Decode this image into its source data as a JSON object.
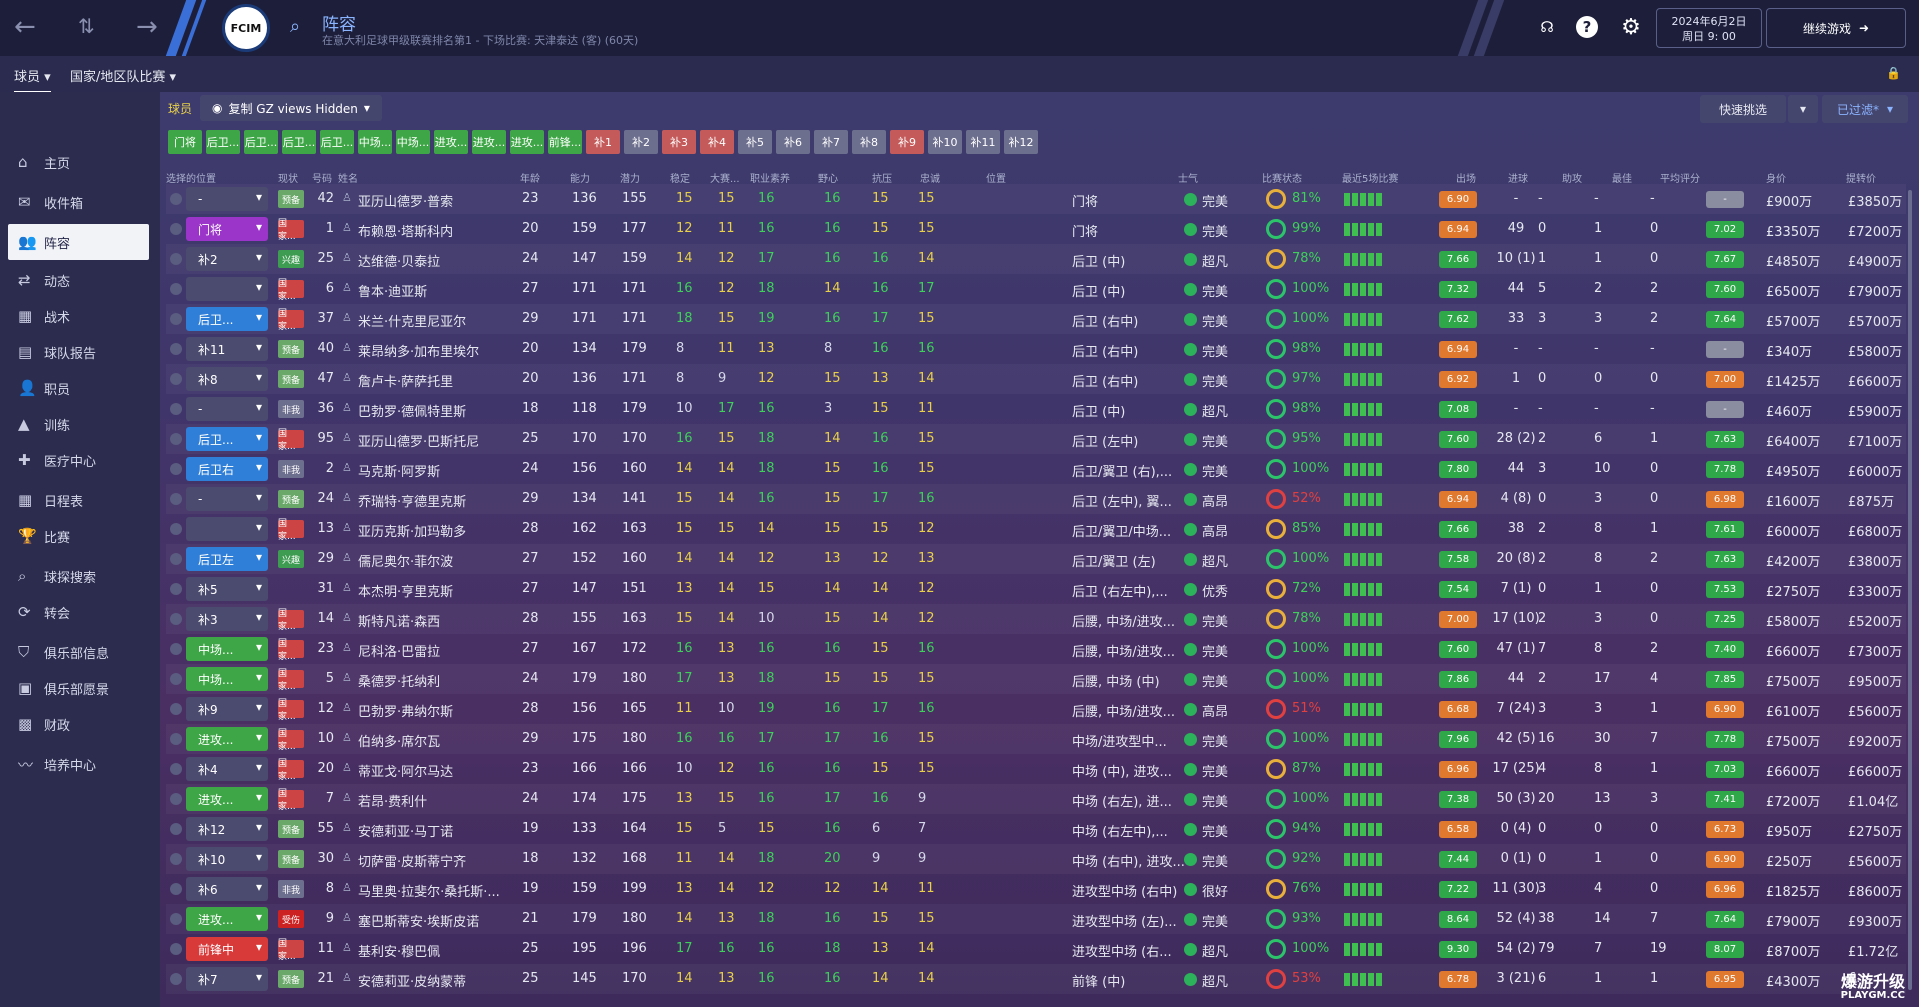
{
  "topbar": {
    "title": "阵容",
    "subtitle": "在意大利足球甲级联赛排名第1 - 下场比赛: 天津泰达 (客) (60天)",
    "crest_text": "FCIM",
    "date": "2024年6月2日",
    "time": "周日 9: 00",
    "continue": "继续游戏"
  },
  "subtabs": [
    "球员",
    "国家/地区队比赛"
  ],
  "sidebar": [
    "主页",
    "收件箱",
    "阵容",
    "动态",
    "战术",
    "球队报告",
    "职员",
    "训练",
    "医疗中心",
    "日程表",
    "比赛",
    "球探搜索",
    "转会",
    "俱乐部信息",
    "俱乐部愿景",
    "财政",
    "培养中心"
  ],
  "toolbar": {
    "label": "球员",
    "view": "复制 GZ views Hidden",
    "quick": "快速挑选",
    "filter": "已过滤*"
  },
  "pills": [
    {
      "t": "门将",
      "c": "#3ea646"
    },
    {
      "t": "后卫...",
      "c": "#3ea646"
    },
    {
      "t": "后卫...",
      "c": "#3ea646"
    },
    {
      "t": "后卫...",
      "c": "#3ea646"
    },
    {
      "t": "后卫...",
      "c": "#3ea646"
    },
    {
      "t": "中场...",
      "c": "#3ea646"
    },
    {
      "t": "中场...",
      "c": "#3ea646"
    },
    {
      "t": "进攻...",
      "c": "#3ea646"
    },
    {
      "t": "进攻...",
      "c": "#3ea646"
    },
    {
      "t": "进攻...",
      "c": "#3ea646"
    },
    {
      "t": "前锋...",
      "c": "#3ea646"
    },
    {
      "t": "补1",
      "c": "#c45a5a"
    },
    {
      "t": "补2",
      "c": "#6d6f8e"
    },
    {
      "t": "补3",
      "c": "#c45a5a"
    },
    {
      "t": "补4",
      "c": "#c45a5a"
    },
    {
      "t": "补5",
      "c": "#6d6f8e"
    },
    {
      "t": "补6",
      "c": "#6d6f8e"
    },
    {
      "t": "补7",
      "c": "#6d6f8e"
    },
    {
      "t": "补8",
      "c": "#6d6f8e"
    },
    {
      "t": "补9",
      "c": "#c45a5a"
    },
    {
      "t": "补10",
      "c": "#6d6f8e"
    },
    {
      "t": "补11",
      "c": "#6d6f8e"
    },
    {
      "t": "补12",
      "c": "#6d6f8e"
    }
  ],
  "headers": [
    "选择的位置",
    "现状",
    "号码",
    "姓名",
    "年龄",
    "能力",
    "潜力",
    "稳定",
    "大赛...",
    "职业素养",
    "野心",
    "抗压",
    "忠诚",
    "位置",
    "士气",
    "比赛状态",
    "最近5场比赛",
    "出场",
    "进球",
    "助攻",
    "最佳",
    "平均评分",
    "身价",
    "提转价"
  ],
  "rows": [
    {
      "sel": "-",
      "sc": "#4a4b6e",
      "st": "预备",
      "bc": "#6aa86a",
      "no": "42",
      "name": "亚历山德罗·普索",
      "age": "23",
      "ca": "136",
      "pa": "155",
      "c1": "15",
      "c2": "15",
      "c3": "16",
      "c4": "16",
      "c5": "15",
      "c6": "15",
      "pos": "门将",
      "mor": "完美",
      "cond": "81%",
      "r5": "6.90",
      "r5c": "#e0782e",
      "apps": "-",
      "gl": "-",
      "as": "-",
      "pom": "-",
      "avg": "-",
      "avc": "#8a8ca0",
      "val": "£900万",
      "ask": "£3850万"
    },
    {
      "sel": "门将",
      "sc": "#9b35c9",
      "st": "国家...",
      "bc": "#cc4444",
      "no": "1",
      "name": "布赖恩·塔斯科内",
      "age": "20",
      "ca": "159",
      "pa": "177",
      "c1": "12",
      "c2": "11",
      "c3": "16",
      "c4": "16",
      "c5": "15",
      "c6": "15",
      "pos": "门将",
      "mor": "完美",
      "cond": "99%",
      "r5": "6.94",
      "r5c": "#e0782e",
      "apps": "49",
      "gl": "0",
      "as": "1",
      "pom": "0",
      "avg": "7.02",
      "avc": "#2fa84a",
      "val": "£3350万",
      "ask": "£7200万"
    },
    {
      "sel": "补2",
      "sc": "#4a4b6e",
      "st": "兴趣",
      "bc": "#3e9b52",
      "no": "25",
      "name": "达维德·贝泰拉",
      "age": "24",
      "ca": "147",
      "pa": "159",
      "c1": "14",
      "c2": "12",
      "c3": "17",
      "c4": "16",
      "c5": "16",
      "c6": "14",
      "pos": "后卫 (中)",
      "mor": "超凡",
      "cond": "78%",
      "r5": "7.66",
      "r5c": "#2fa84a",
      "apps": "10 (1)",
      "gl": "1",
      "as": "1",
      "pom": "0",
      "avg": "7.67",
      "avc": "#2fa84a",
      "val": "£4850万",
      "ask": "£4900万"
    },
    {
      "sel": "",
      "sc": "#4a4b6e",
      "st": "国家...",
      "bc": "#cc4444",
      "no": "6",
      "name": "鲁本·迪亚斯",
      "age": "27",
      "ca": "171",
      "pa": "171",
      "c1": "16",
      "c2": "12",
      "c3": "18",
      "c4": "14",
      "c5": "16",
      "c6": "17",
      "pos": "后卫 (中)",
      "mor": "完美",
      "cond": "100%",
      "r5": "7.32",
      "r5c": "#2fa84a",
      "apps": "44",
      "gl": "5",
      "as": "2",
      "pom": "2",
      "avg": "7.60",
      "avc": "#2fa84a",
      "val": "£6500万",
      "ask": "£7900万"
    },
    {
      "sel": "后卫...",
      "sc": "#2f7fd8",
      "st": "国家...",
      "bc": "#cc4444",
      "no": "37",
      "name": "米兰·什克里尼亚尔",
      "age": "29",
      "ca": "171",
      "pa": "171",
      "c1": "18",
      "c2": "15",
      "c3": "19",
      "c4": "16",
      "c5": "17",
      "c6": "15",
      "pos": "后卫 (右中)",
      "mor": "完美",
      "cond": "100%",
      "r5": "7.62",
      "r5c": "#2fa84a",
      "apps": "33",
      "gl": "3",
      "as": "3",
      "pom": "2",
      "avg": "7.64",
      "avc": "#2fa84a",
      "val": "£5700万",
      "ask": "£5700万"
    },
    {
      "sel": "补11",
      "sc": "#4a4b6e",
      "st": "预备",
      "bc": "#6aa86a",
      "no": "40",
      "name": "莱昂纳多·加布里埃尔",
      "age": "20",
      "ca": "134",
      "pa": "179",
      "c1": "8",
      "c2": "11",
      "c3": "13",
      "c4": "8",
      "c5": "16",
      "c6": "16",
      "pos": "后卫 (右中)",
      "mor": "完美",
      "cond": "98%",
      "r5": "6.94",
      "r5c": "#e0782e",
      "apps": "-",
      "gl": "-",
      "as": "-",
      "pom": "-",
      "avg": "-",
      "avc": "#8a8ca0",
      "val": "£340万",
      "ask": "£5800万"
    },
    {
      "sel": "补8",
      "sc": "#4a4b6e",
      "st": "预备",
      "bc": "#6aa86a",
      "no": "47",
      "name": "詹卢卡·萨萨托里",
      "age": "20",
      "ca": "136",
      "pa": "171",
      "c1": "8",
      "c2": "9",
      "c3": "12",
      "c4": "15",
      "c5": "13",
      "c6": "14",
      "pos": "后卫 (右中)",
      "mor": "完美",
      "cond": "97%",
      "r5": "6.92",
      "r5c": "#e0782e",
      "apps": "1",
      "gl": "0",
      "as": "0",
      "pom": "0",
      "avg": "7.00",
      "avc": "#e0782e",
      "val": "£1425万",
      "ask": "£6600万"
    },
    {
      "sel": "-",
      "sc": "#4a4b6e",
      "st": "非我",
      "bc": "#6d6f8e",
      "no": "36",
      "name": "巴勃罗·德佩特里斯",
      "age": "18",
      "ca": "118",
      "pa": "179",
      "c1": "10",
      "c2": "17",
      "c3": "16",
      "c4": "3",
      "c5": "15",
      "c6": "11",
      "pos": "后卫 (中)",
      "mor": "超凡",
      "cond": "98%",
      "r5": "7.08",
      "r5c": "#2fa84a",
      "apps": "-",
      "gl": "-",
      "as": "-",
      "pom": "-",
      "avg": "-",
      "avc": "#8a8ca0",
      "val": "£460万",
      "ask": "£5900万"
    },
    {
      "sel": "后卫...",
      "sc": "#2f7fd8",
      "st": "国家...",
      "bc": "#cc4444",
      "no": "95",
      "name": "亚历山德罗·巴斯托尼",
      "age": "25",
      "ca": "170",
      "pa": "170",
      "c1": "16",
      "c2": "15",
      "c3": "18",
      "c4": "14",
      "c5": "16",
      "c6": "15",
      "pos": "后卫 (左中)",
      "mor": "完美",
      "cond": "95%",
      "r5": "7.60",
      "r5c": "#2fa84a",
      "apps": "28 (2)",
      "gl": "2",
      "as": "6",
      "pom": "1",
      "avg": "7.63",
      "avc": "#2fa84a",
      "val": "£6400万",
      "ask": "£7100万"
    },
    {
      "sel": "后卫右",
      "sc": "#2f7fd8",
      "st": "非我",
      "bc": "#6d6f8e",
      "no": "2",
      "name": "马克斯·阿罗斯",
      "age": "24",
      "ca": "156",
      "pa": "160",
      "c1": "14",
      "c2": "14",
      "c3": "18",
      "c4": "15",
      "c5": "16",
      "c6": "15",
      "pos": "后卫/翼卫 (右),...",
      "mor": "完美",
      "cond": "100%",
      "r5": "7.80",
      "r5c": "#2fa84a",
      "apps": "44",
      "gl": "3",
      "as": "10",
      "pom": "0",
      "avg": "7.78",
      "avc": "#2fa84a",
      "val": "£4950万",
      "ask": "£6000万"
    },
    {
      "sel": "-",
      "sc": "#4a4b6e",
      "st": "预备",
      "bc": "#6aa86a",
      "no": "24",
      "name": "乔瑞特·亨德里克斯",
      "age": "29",
      "ca": "134",
      "pa": "141",
      "c1": "15",
      "c2": "14",
      "c3": "16",
      "c4": "15",
      "c5": "17",
      "c6": "16",
      "pos": "后卫 (左中), 翼...",
      "mor": "高昂",
      "cond": "52%",
      "r5": "6.94",
      "r5c": "#e0782e",
      "apps": "4 (8)",
      "gl": "0",
      "as": "3",
      "pom": "0",
      "avg": "6.98",
      "avc": "#e0782e",
      "val": "£1600万",
      "ask": "£875万"
    },
    {
      "sel": "",
      "sc": "#4a4b6e",
      "st": "国家...",
      "bc": "#cc4444",
      "no": "13",
      "name": "亚历克斯·加玛勒多",
      "age": "28",
      "ca": "162",
      "pa": "163",
      "c1": "15",
      "c2": "15",
      "c3": "14",
      "c4": "15",
      "c5": "15",
      "c6": "12",
      "pos": "后卫/翼卫/中场...",
      "mor": "高昂",
      "cond": "85%",
      "r5": "7.66",
      "r5c": "#2fa84a",
      "apps": "38",
      "gl": "2",
      "as": "8",
      "pom": "1",
      "avg": "7.61",
      "avc": "#2fa84a",
      "val": "£6000万",
      "ask": "£6800万"
    },
    {
      "sel": "后卫左",
      "sc": "#2f7fd8",
      "st": "兴趣",
      "bc": "#3e9b52",
      "no": "29",
      "name": "儒尼奥尔·菲尔波",
      "age": "27",
      "ca": "152",
      "pa": "160",
      "c1": "14",
      "c2": "14",
      "c3": "12",
      "c4": "13",
      "c5": "12",
      "c6": "13",
      "pos": "后卫/翼卫 (左)",
      "mor": "超凡",
      "cond": "100%",
      "r5": "7.58",
      "r5c": "#2fa84a",
      "apps": "20 (8)",
      "gl": "2",
      "as": "8",
      "pom": "2",
      "avg": "7.63",
      "avc": "#2fa84a",
      "val": "£4200万",
      "ask": "£3800万"
    },
    {
      "sel": "补5",
      "sc": "#4a4b6e",
      "st": "",
      "bc": "transparent",
      "no": "31",
      "name": "本杰明·亨里克斯",
      "age": "27",
      "ca": "147",
      "pa": "151",
      "c1": "13",
      "c2": "14",
      "c3": "15",
      "c4": "14",
      "c5": "14",
      "c6": "12",
      "pos": "后卫 (右左中),...",
      "mor": "优秀",
      "cond": "72%",
      "r5": "7.54",
      "r5c": "#2fa84a",
      "apps": "7 (1)",
      "gl": "0",
      "as": "1",
      "pom": "0",
      "avg": "7.53",
      "avc": "#2fa84a",
      "val": "£2750万",
      "ask": "£3300万"
    },
    {
      "sel": "补3",
      "sc": "#4a4b6e",
      "st": "国家...",
      "bc": "#cc4444",
      "no": "14",
      "name": "斯特凡诺·森西",
      "age": "28",
      "ca": "155",
      "pa": "163",
      "c1": "15",
      "c2": "14",
      "c3": "10",
      "c4": "15",
      "c5": "14",
      "c6": "12",
      "pos": "后腰, 中场/进攻...",
      "mor": "完美",
      "cond": "78%",
      "r5": "7.00",
      "r5c": "#e0782e",
      "apps": "17 (10)",
      "gl": "2",
      "as": "3",
      "pom": "0",
      "avg": "7.25",
      "avc": "#2fa84a",
      "val": "£5800万",
      "ask": "£5200万"
    },
    {
      "sel": "中场...",
      "sc": "#3ea646",
      "st": "国家...",
      "bc": "#cc4444",
      "no": "23",
      "name": "尼科洛·巴雷拉",
      "age": "27",
      "ca": "167",
      "pa": "172",
      "c1": "16",
      "c2": "13",
      "c3": "16",
      "c4": "16",
      "c5": "15",
      "c6": "16",
      "pos": "后腰, 中场/进攻...",
      "mor": "完美",
      "cond": "100%",
      "r5": "7.60",
      "r5c": "#2fa84a",
      "apps": "47 (1)",
      "gl": "7",
      "as": "8",
      "pom": "2",
      "avg": "7.40",
      "avc": "#2fa84a",
      "val": "£6600万",
      "ask": "£7300万"
    },
    {
      "sel": "中场...",
      "sc": "#3ea646",
      "st": "国家...",
      "bc": "#cc4444",
      "no": "5",
      "name": "桑德罗·托纳利",
      "age": "24",
      "ca": "179",
      "pa": "180",
      "c1": "17",
      "c2": "13",
      "c3": "18",
      "c4": "15",
      "c5": "15",
      "c6": "15",
      "pos": "后腰, 中场 (中)",
      "mor": "完美",
      "cond": "100%",
      "r5": "7.86",
      "r5c": "#2fa84a",
      "apps": "44",
      "gl": "2",
      "as": "17",
      "pom": "4",
      "avg": "7.85",
      "avc": "#2fa84a",
      "val": "£7500万",
      "ask": "£9500万"
    },
    {
      "sel": "补9",
      "sc": "#4a4b6e",
      "st": "国家...",
      "bc": "#cc4444",
      "no": "12",
      "name": "巴勃罗·弗纳尔斯",
      "age": "28",
      "ca": "156",
      "pa": "165",
      "c1": "11",
      "c2": "10",
      "c3": "19",
      "c4": "16",
      "c5": "17",
      "c6": "16",
      "pos": "后腰, 中场/进攻...",
      "mor": "高昂",
      "cond": "51%",
      "r5": "6.68",
      "r5c": "#e0782e",
      "apps": "7 (24)",
      "gl": "3",
      "as": "3",
      "pom": "1",
      "avg": "6.90",
      "avc": "#e0782e",
      "val": "£6100万",
      "ask": "£5600万"
    },
    {
      "sel": "进攻...",
      "sc": "#3ea646",
      "st": "国家...",
      "bc": "#cc4444",
      "no": "10",
      "name": "伯纳多·席尔瓦",
      "age": "29",
      "ca": "175",
      "pa": "180",
      "c1": "16",
      "c2": "16",
      "c3": "17",
      "c4": "17",
      "c5": "16",
      "c6": "15",
      "pos": "中场/进攻型中...",
      "mor": "完美",
      "cond": "100%",
      "r5": "7.96",
      "r5c": "#2fa84a",
      "apps": "42 (5)",
      "gl": "16",
      "as": "30",
      "pom": "7",
      "avg": "7.78",
      "avc": "#2fa84a",
      "val": "£7500万",
      "ask": "£9200万"
    },
    {
      "sel": "补4",
      "sc": "#4a4b6e",
      "st": "国家...",
      "bc": "#cc4444",
      "no": "20",
      "name": "蒂亚戈·阿尔马达",
      "age": "23",
      "ca": "166",
      "pa": "166",
      "c1": "10",
      "c2": "12",
      "c3": "16",
      "c4": "16",
      "c5": "15",
      "c6": "15",
      "pos": "中场 (中), 进攻...",
      "mor": "完美",
      "cond": "87%",
      "r5": "6.96",
      "r5c": "#e0782e",
      "apps": "17 (25)",
      "gl": "4",
      "as": "8",
      "pom": "1",
      "avg": "7.03",
      "avc": "#2fa84a",
      "val": "£6600万",
      "ask": "£6600万"
    },
    {
      "sel": "进攻...",
      "sc": "#3ea646",
      "st": "国家...",
      "bc": "#cc4444",
      "no": "7",
      "name": "若昂·费利什",
      "age": "24",
      "ca": "174",
      "pa": "175",
      "c1": "13",
      "c2": "15",
      "c3": "16",
      "c4": "17",
      "c5": "16",
      "c6": "9",
      "pos": "中场 (右左), 进...",
      "mor": "完美",
      "cond": "100%",
      "r5": "7.38",
      "r5c": "#2fa84a",
      "apps": "50 (3)",
      "gl": "20",
      "as": "13",
      "pom": "3",
      "avg": "7.41",
      "avc": "#2fa84a",
      "val": "£7200万",
      "ask": "£1.04亿"
    },
    {
      "sel": "补12",
      "sc": "#4a4b6e",
      "st": "预备",
      "bc": "#6aa86a",
      "no": "55",
      "name": "安德莉亚·马丁诺",
      "age": "19",
      "ca": "133",
      "pa": "164",
      "c1": "15",
      "c2": "5",
      "c3": "15",
      "c4": "16",
      "c5": "6",
      "c6": "7",
      "pos": "中场 (右左中),...",
      "mor": "完美",
      "cond": "94%",
      "r5": "6.58",
      "r5c": "#e0782e",
      "apps": "0 (4)",
      "gl": "0",
      "as": "0",
      "pom": "0",
      "avg": "6.73",
      "avc": "#e0782e",
      "val": "£950万",
      "ask": "£2750万"
    },
    {
      "sel": "补10",
      "sc": "#4a4b6e",
      "st": "预备",
      "bc": "#6aa86a",
      "no": "30",
      "name": "切萨雷·皮斯蒂宁齐",
      "age": "18",
      "ca": "132",
      "pa": "168",
      "c1": "11",
      "c2": "14",
      "c3": "18",
      "c4": "20",
      "c5": "9",
      "c6": "9",
      "pos": "中场 (右中), 进攻...",
      "mor": "完美",
      "cond": "92%",
      "r5": "7.44",
      "r5c": "#2fa84a",
      "apps": "0 (1)",
      "gl": "0",
      "as": "1",
      "pom": "0",
      "avg": "6.90",
      "avc": "#e0782e",
      "val": "£250万",
      "ask": "£5600万"
    },
    {
      "sel": "补6",
      "sc": "#4a4b6e",
      "st": "非我",
      "bc": "#6d6f8e",
      "no": "8",
      "name": "马里奥·拉斐尔·桑托斯·...",
      "age": "19",
      "ca": "159",
      "pa": "199",
      "c1": "13",
      "c2": "14",
      "c3": "12",
      "c4": "12",
      "c5": "14",
      "c6": "11",
      "pos": "进攻型中场 (右中)",
      "mor": "很好",
      "cond": "76%",
      "r5": "7.22",
      "r5c": "#2fa84a",
      "apps": "11 (30)",
      "gl": "3",
      "as": "4",
      "pom": "0",
      "avg": "6.96",
      "avc": "#e0782e",
      "val": "£1825万",
      "ask": "£8600万"
    },
    {
      "sel": "进攻...",
      "sc": "#3ea646",
      "st": "受伤",
      "bc": "#cc2222",
      "no": "9",
      "name": "塞巴斯蒂安·埃斯皮诺",
      "age": "21",
      "ca": "179",
      "pa": "180",
      "c1": "14",
      "c2": "13",
      "c3": "18",
      "c4": "16",
      "c5": "15",
      "c6": "15",
      "pos": "进攻型中场 (左)...",
      "mor": "完美",
      "cond": "93%",
      "r5": "8.64",
      "r5c": "#2fa84a",
      "apps": "52 (4)",
      "gl": "38",
      "as": "14",
      "pom": "7",
      "avg": "7.64",
      "avc": "#2fa84a",
      "val": "£7900万",
      "ask": "£9300万"
    },
    {
      "sel": "前锋中",
      "sc": "#d83a3a",
      "st": "国家...",
      "bc": "#cc4444",
      "no": "11",
      "name": "基利安·穆巴佩",
      "age": "25",
      "ca": "195",
      "pa": "196",
      "c1": "17",
      "c2": "16",
      "c3": "16",
      "c4": "18",
      "c5": "13",
      "c6": "14",
      "pos": "进攻型中场 (右...",
      "mor": "超凡",
      "cond": "100%",
      "r5": "9.30",
      "r5c": "#2fa84a",
      "apps": "54 (2)",
      "gl": "79",
      "as": "7",
      "pom": "19",
      "avg": "8.07",
      "avc": "#2fa84a",
      "val": "£8700万",
      "ask": "£1.72亿"
    },
    {
      "sel": "补7",
      "sc": "#4a4b6e",
      "st": "预备",
      "bc": "#6aa86a",
      "no": "21",
      "name": "安德莉亚·皮纳蒙蒂",
      "age": "25",
      "ca": "145",
      "pa": "170",
      "c1": "14",
      "c2": "13",
      "c3": "16",
      "c4": "16",
      "c5": "14",
      "c6": "14",
      "pos": "前锋 (中)",
      "mor": "超凡",
      "cond": "53%",
      "r5": "6.78",
      "r5c": "#e0782e",
      "apps": "3 (21)",
      "gl": "6",
      "as": "1",
      "pom": "1",
      "avg": "6.95",
      "avc": "#e0782e",
      "val": "£4300万",
      "ask": "£..."
    }
  ],
  "watermark": {
    "line1": "爆游升级",
    "line2": "PLAYGM.CC"
  }
}
